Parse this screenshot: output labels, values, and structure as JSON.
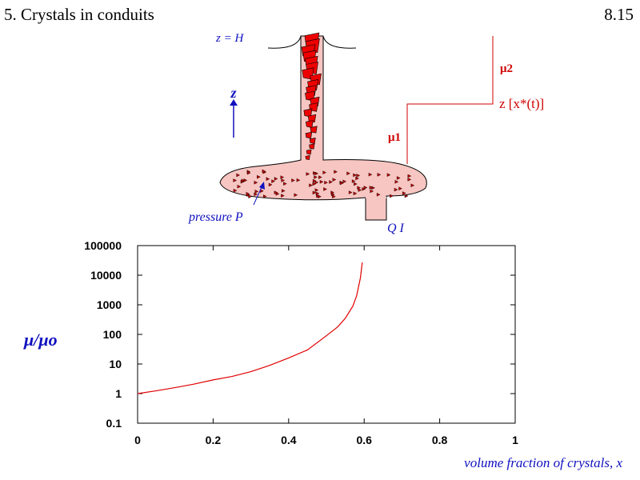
{
  "header": {
    "title": "5. Crystals in conduits",
    "page": "8.15"
  },
  "diagram": {
    "top_label": "z = H",
    "axis_label": "z",
    "mu_upper": "μ2",
    "mu_lower": "μ1",
    "interface_label": "z [x*(t)]",
    "pressure_label": "pressure  P",
    "flux_label": "Q I"
  },
  "chart_data": {
    "type": "line",
    "x_label": "volume fraction of crystals, x",
    "y_label": "μ/μo",
    "x": [
      0,
      0.05,
      0.1,
      0.15,
      0.2,
      0.25,
      0.3,
      0.35,
      0.4,
      0.45,
      0.5,
      0.53,
      0.55,
      0.57,
      0.58,
      0.59,
      0.595
    ],
    "series": [
      {
        "color": "#e00000",
        "values": [
          1,
          1.25,
          1.6,
          2.1,
          2.9,
          3.8,
          5.5,
          9,
          16,
          30,
          90,
          180,
          350,
          900,
          2000,
          8000,
          27000
        ]
      }
    ],
    "xlim": [
      0,
      1
    ],
    "xticks": [
      0,
      0.2,
      0.4,
      0.6,
      0.8,
      1
    ],
    "ylim": [
      0.1,
      100000
    ],
    "yticks": [
      0.1,
      1,
      10,
      100,
      1000,
      10000,
      100000
    ],
    "log_y": true,
    "grid": false
  }
}
